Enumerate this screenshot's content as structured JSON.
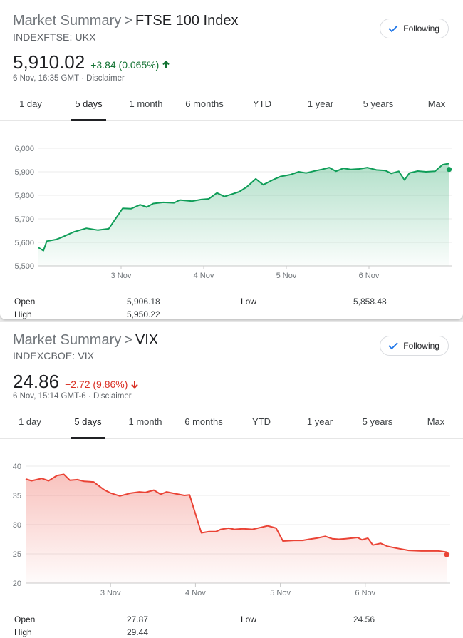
{
  "panels": [
    {
      "title_prefix": "Market Summary",
      "separator": ">",
      "title": "FTSE 100 Index",
      "ticker": "INDEXFTSE: UKX",
      "follow_label": "Following",
      "price": "5,910.02",
      "change": "+3.84 (0.065%)",
      "direction": "up",
      "timestamp": "6 Nov, 16:35 GMT",
      "disclaimer": "Disclaimer",
      "tabs": [
        "1 day",
        "5 days",
        "1 month",
        "6 months",
        "YTD",
        "1 year",
        "5 years",
        "Max"
      ],
      "active_tab": "5 days",
      "stats": {
        "open_label": "Open",
        "open_value": "5,906.18",
        "high_label": "High",
        "high_value": "5,950.22",
        "low_label": "Low",
        "low_value": "5,858.48"
      },
      "accent_color": "#0f9d58"
    },
    {
      "title_prefix": "Market Summary",
      "separator": ">",
      "title": "VIX",
      "ticker": "INDEXCBOE: VIX",
      "follow_label": "Following",
      "price": "24.86",
      "change": "−2.72 (9.86%)",
      "direction": "down",
      "timestamp": "6 Nov, 15:14 GMT-6",
      "disclaimer": "Disclaimer",
      "tabs": [
        "1 day",
        "5 days",
        "1 month",
        "6 months",
        "YTD",
        "1 year",
        "5 years",
        "Max"
      ],
      "active_tab": "5 days",
      "stats": {
        "open_label": "Open",
        "open_value": "27.87",
        "high_label": "High",
        "high_value": "29.44",
        "low_label": "Low",
        "low_value": "24.56"
      },
      "accent_color": "#ea4335"
    }
  ],
  "chart_data": [
    {
      "type": "area",
      "title": "",
      "xlabel": "",
      "ylabel": "",
      "ylim": [
        5500,
        6000
      ],
      "y_ticks": [
        "5,500",
        "5,600",
        "5,700",
        "5,800",
        "5,900",
        "6,000"
      ],
      "x_ticks": [
        "3 Nov",
        "4 Nov",
        "5 Nov",
        "6 Nov"
      ],
      "x_tick_positions": [
        1,
        2,
        3,
        4
      ],
      "xlim": [
        0,
        5
      ],
      "grid": true,
      "color": "#0f9d58",
      "series": [
        {
          "x": [
            0.0,
            0.06,
            0.1,
            0.21,
            0.27,
            0.43,
            0.58,
            0.72,
            0.85,
            1.02,
            1.12,
            1.23,
            1.31,
            1.39,
            1.51,
            1.64,
            1.71,
            1.86,
            1.97,
            2.06,
            2.16,
            2.25,
            2.34,
            2.43,
            2.52,
            2.63,
            2.72,
            2.85,
            2.93,
            3.05,
            3.15,
            3.24,
            3.36,
            3.43,
            3.52,
            3.6,
            3.69,
            3.78,
            3.88,
            3.98,
            4.09,
            4.2,
            4.27,
            4.36,
            4.43,
            4.49,
            4.59,
            4.69,
            4.8,
            4.89,
            4.97
          ],
          "y": [
            5578,
            5565,
            5605,
            5612,
            5620,
            5645,
            5660,
            5652,
            5658,
            5745,
            5743,
            5760,
            5750,
            5765,
            5770,
            5768,
            5780,
            5775,
            5782,
            5785,
            5810,
            5795,
            5805,
            5815,
            5835,
            5870,
            5845,
            5868,
            5880,
            5888,
            5900,
            5895,
            5905,
            5910,
            5918,
            5902,
            5915,
            5910,
            5912,
            5918,
            5908,
            5905,
            5893,
            5902,
            5865,
            5895,
            5903,
            5900,
            5902,
            5930,
            5935
          ],
          "last": 5910.02
        }
      ]
    },
    {
      "type": "area",
      "title": "",
      "xlabel": "",
      "ylabel": "",
      "ylim": [
        20,
        40
      ],
      "y_ticks": [
        "20",
        "25",
        "30",
        "35",
        "40"
      ],
      "x_ticks": [
        "3 Nov",
        "4 Nov",
        "5 Nov",
        "6 Nov"
      ],
      "x_tick_positions": [
        1,
        2,
        3,
        4
      ],
      "xlim": [
        0,
        5
      ],
      "grid": true,
      "color": "#ea4335",
      "series": [
        {
          "x": [
            0.0,
            0.07,
            0.13,
            0.19,
            0.27,
            0.37,
            0.45,
            0.52,
            0.61,
            0.69,
            0.8,
            0.92,
            1.0,
            1.11,
            1.24,
            1.34,
            1.41,
            1.51,
            1.59,
            1.66,
            1.76,
            1.87,
            1.93,
            2.07,
            2.16,
            2.24,
            2.3,
            2.39,
            2.46,
            2.56,
            2.67,
            2.79,
            2.85,
            2.95,
            3.03,
            3.16,
            3.26,
            3.34,
            3.43,
            3.53,
            3.61,
            3.69,
            3.77,
            3.84,
            3.91,
            3.96,
            4.03,
            4.09,
            4.18,
            4.26,
            4.36,
            4.51,
            4.66,
            4.86,
            4.96
          ],
          "y": [
            37.8,
            37.5,
            37.7,
            37.9,
            37.5,
            38.4,
            38.6,
            37.6,
            37.7,
            37.4,
            37.3,
            36.0,
            35.4,
            34.9,
            35.4,
            35.6,
            35.5,
            35.9,
            35.2,
            35.6,
            35.3,
            35.0,
            35.1,
            28.6,
            28.8,
            28.8,
            29.2,
            29.4,
            29.2,
            29.3,
            29.2,
            29.6,
            29.8,
            29.4,
            27.2,
            27.3,
            27.3,
            27.5,
            27.7,
            28.0,
            27.6,
            27.5,
            27.6,
            27.7,
            27.8,
            27.4,
            27.7,
            26.5,
            26.8,
            26.3,
            26.0,
            25.6,
            25.5,
            25.5,
            25.3
          ],
          "last": 24.86
        }
      ]
    }
  ]
}
